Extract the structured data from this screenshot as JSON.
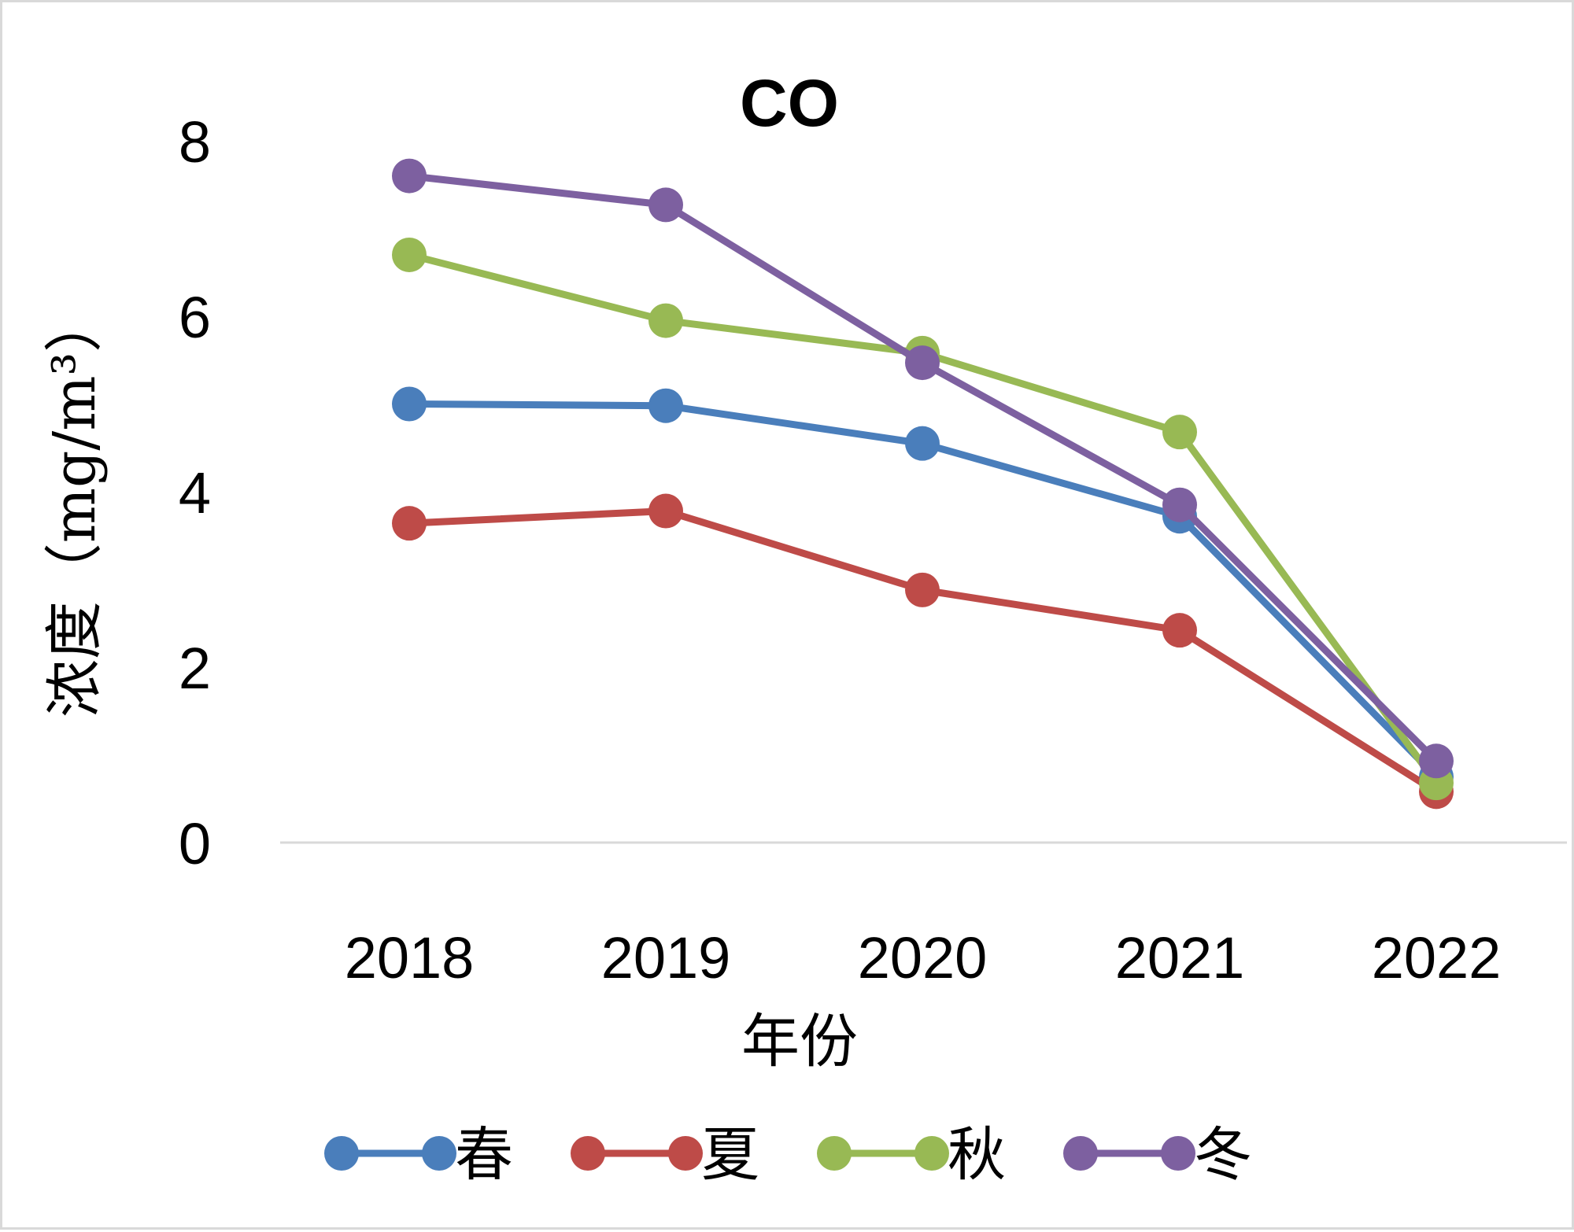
{
  "chart_data": {
    "type": "line",
    "title": "CO",
    "xlabel": "年份",
    "ylabel": "浓度（mg/m³）",
    "categories": [
      "2018",
      "2019",
      "2020",
      "2021",
      "2022"
    ],
    "ylim": [
      0,
      8
    ],
    "yticks": [
      "0",
      "2",
      "4",
      "6",
      "8"
    ],
    "grid": false,
    "legend_position": "bottom",
    "series": [
      {
        "name": "春",
        "color": "#4a7ebb",
        "values": [
          5.0,
          4.98,
          4.55,
          3.72,
          0.75
        ]
      },
      {
        "name": "夏",
        "color": "#be4b48",
        "values": [
          3.64,
          3.78,
          2.88,
          2.42,
          0.58
        ]
      },
      {
        "name": "秋",
        "color": "#98b954",
        "values": [
          6.7,
          5.95,
          5.58,
          4.68,
          0.68
        ]
      },
      {
        "name": "冬",
        "color": "#7d60a0",
        "values": [
          7.6,
          7.27,
          5.47,
          3.85,
          0.93
        ]
      }
    ]
  }
}
